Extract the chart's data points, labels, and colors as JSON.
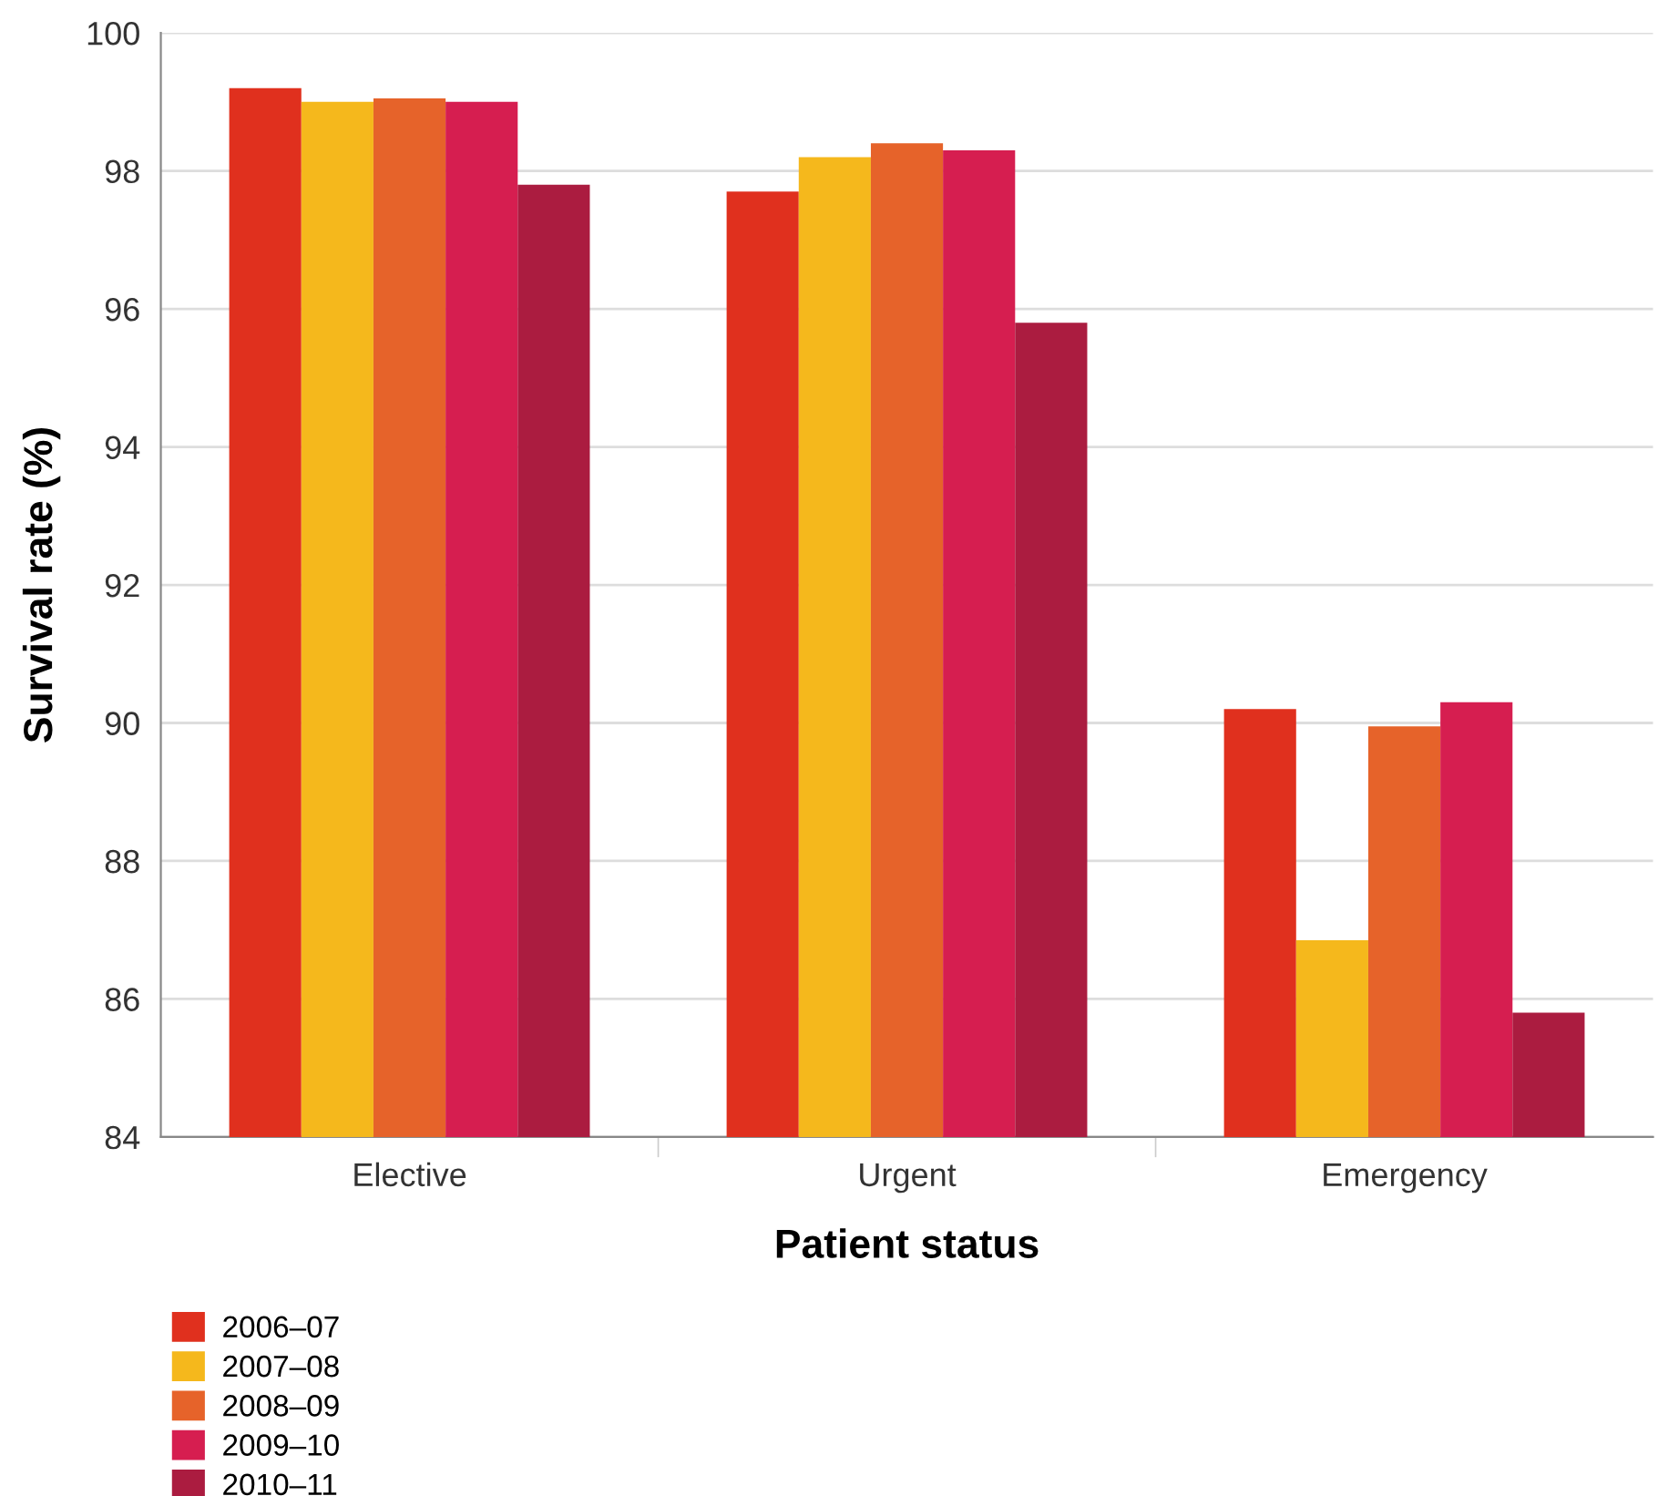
{
  "chart_data": {
    "type": "bar",
    "xlabel": "Patient status",
    "ylabel": "Survival rate (%)",
    "categories": [
      "Elective",
      "Urgent",
      "Emergency"
    ],
    "series": [
      {
        "name": "2006–07",
        "color": "#e0301e",
        "values": [
          99.2,
          97.7,
          90.2
        ]
      },
      {
        "name": "2007–08",
        "color": "#f5b81c",
        "values": [
          99.0,
          98.2,
          86.85
        ]
      },
      {
        "name": "2008–09",
        "color": "#e6632a",
        "values": [
          99.05,
          98.4,
          89.95
        ]
      },
      {
        "name": "2009–10",
        "color": "#d61e50",
        "values": [
          99.0,
          98.3,
          90.3
        ]
      },
      {
        "name": "2010–11",
        "color": "#ab1c40",
        "values": [
          97.8,
          95.8,
          85.8
        ]
      }
    ],
    "ylim": [
      84,
      100
    ],
    "yticks": [
      84,
      86,
      88,
      90,
      92,
      94,
      96,
      98,
      100
    ],
    "grid": "y",
    "legend": "bottom left"
  }
}
